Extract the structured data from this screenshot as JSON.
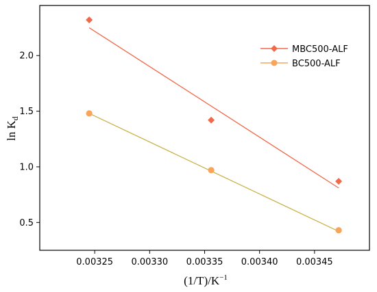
{
  "chart_data": {
    "type": "scatter",
    "xlabel": "(1/T)/K",
    "xlabel_superscript": "−1",
    "ylabel": "ln K",
    "ylabel_subscript": "d",
    "xlim": [
      0.0032,
      0.0035
    ],
    "ylim": [
      0.25,
      2.45
    ],
    "xticks": [
      0.00325,
      0.0033,
      0.00335,
      0.0034,
      0.00345
    ],
    "xtick_labels": [
      "0.00325",
      "0.00330",
      "0.00335",
      "0.00340",
      "0.00345"
    ],
    "yticks": [
      0.5,
      1.0,
      1.5,
      2.0
    ],
    "ytick_labels": [
      "0.5",
      "1.0",
      "1.5",
      "2.0"
    ],
    "legend_position": "top-right",
    "grid": false,
    "series": [
      {
        "name": "MBC500-ALF",
        "marker": "diamond",
        "color": "#f06a4a",
        "x": [
          0.003245,
          0.003356,
          0.003472
        ],
        "y": [
          2.32,
          1.42,
          0.87
        ],
        "fit": {
          "x": [
            0.003245,
            0.003472
          ],
          "y": [
            2.25,
            0.81
          ],
          "color": "#f06a4a"
        }
      },
      {
        "name": "BC500-ALF",
        "marker": "circle",
        "color": "#f7a55a",
        "x": [
          0.003245,
          0.003356,
          0.003472
        ],
        "y": [
          1.48,
          0.97,
          0.43
        ],
        "fit": {
          "x": [
            0.003245,
            0.003472
          ],
          "y": [
            1.48,
            0.42
          ],
          "color": "#c9b24a"
        }
      }
    ]
  }
}
